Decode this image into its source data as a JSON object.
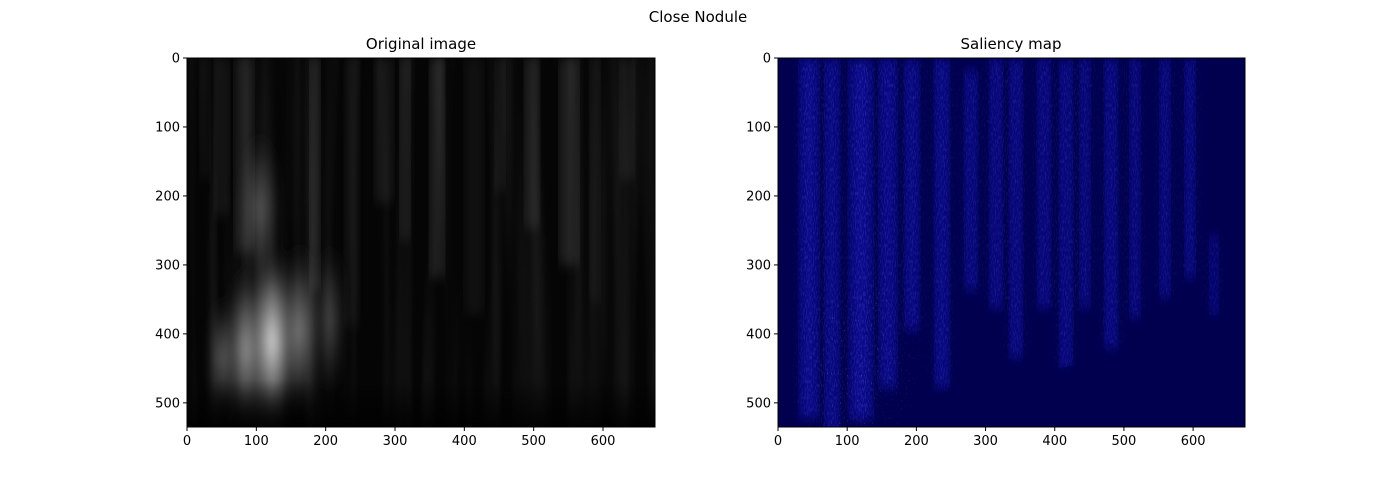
{
  "figure": {
    "title": "Close Nodule"
  },
  "chart_data": [
    {
      "type": "heatmap",
      "title": "Original image",
      "colormap": "gray",
      "xlim": [
        0,
        675
      ],
      "ylim": [
        535,
        0
      ],
      "xticks": [
        0,
        100,
        200,
        300,
        400,
        500,
        600
      ],
      "yticks": [
        0,
        100,
        200,
        300,
        400,
        500
      ],
      "grid": false,
      "content": "wavelet scalogram; brightest vertical lobe near x=120, y=300-450; faint vertical bands across x=250-600"
    },
    {
      "type": "heatmap",
      "title": "Saliency map",
      "colormap": "gist_heat on dark blue",
      "xlim": [
        0,
        675
      ],
      "ylim": [
        535,
        0
      ],
      "xticks": [
        0,
        100,
        200,
        300,
        400,
        500,
        600
      ],
      "yticks": [
        0,
        100,
        200,
        300,
        400,
        500
      ],
      "grid": false,
      "content": "speckled vertical streaks of blue/white; strongest near x=60-170, y=280-480; dark navy background below y~430 for x>200"
    }
  ],
  "colors": {
    "saliency_background": "#00004f",
    "saliency_streak": "#2020ff",
    "saliency_hot": "#ff4020",
    "original_background": "#050505"
  }
}
